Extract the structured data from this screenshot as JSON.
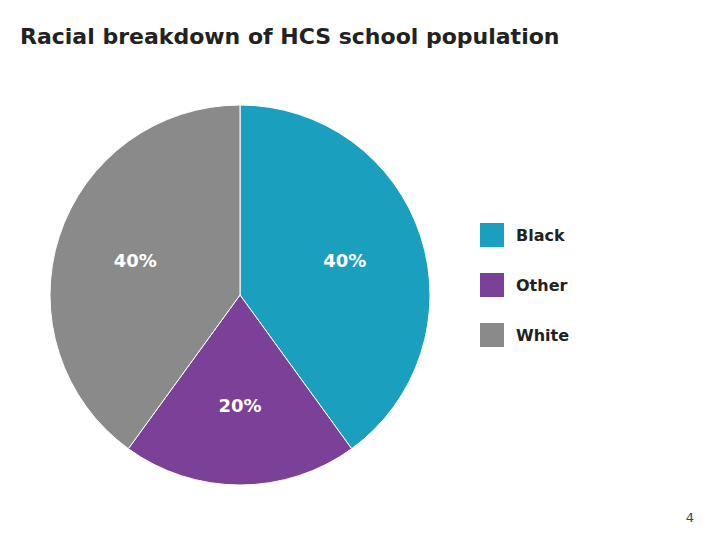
{
  "chart_data": {
    "type": "pie",
    "title": "Racial breakdown of HCS school population",
    "categories": [
      "Black",
      "Other",
      "White"
    ],
    "values": [
      40,
      20,
      40
    ],
    "value_labels": [
      "40%",
      "20%",
      "40%"
    ],
    "colors": [
      "#1B9FBF",
      "#7B4098",
      "#8A8A8A"
    ],
    "data_labels": true,
    "legend": "right",
    "annotations": [
      "4"
    ]
  }
}
